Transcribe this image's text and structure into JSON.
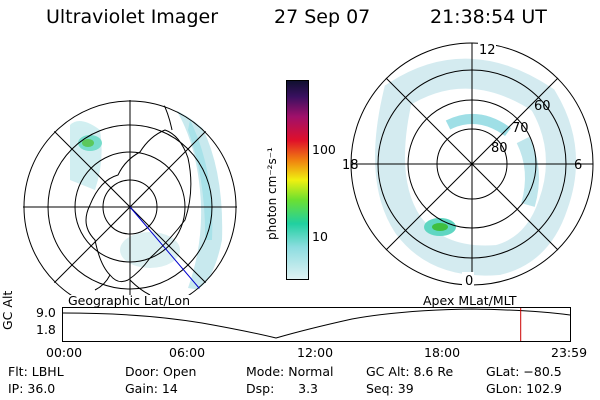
{
  "header": {
    "instrument": "Ultraviolet Imager",
    "date": "27 Sep 07",
    "time": "21:38:54 UT"
  },
  "colorbar": {
    "unit_label": "photon cm⁻²s⁻¹",
    "ticks": [
      "100",
      "10"
    ]
  },
  "left_map": {
    "caption": "Geographic Lat/Lon"
  },
  "right_map": {
    "caption": "Apex MLat/MLT",
    "mlt_labels": {
      "top": "12",
      "bottom": "0",
      "left": "18",
      "right": "6"
    },
    "lat_labels": [
      "60",
      "70",
      "80"
    ]
  },
  "timeline": {
    "ylabel": "GC Alt",
    "yticks": [
      "9.0",
      "1.8"
    ],
    "xticks": [
      "00:00",
      "06:00",
      "12:00",
      "18:00",
      "23:59"
    ],
    "current_marker_hour": 21.65
  },
  "info": {
    "filter": "Flt: LBHL",
    "ip": "IP: 36.0",
    "door": "Door: Open",
    "gain": "Gain: 14",
    "mode": "Mode: Normal",
    "dsp": "Dsp:      3.3",
    "gc_alt": "GC Alt: 8.6 Re",
    "seq": "Seq: 39",
    "glat": "GLat: −80.5",
    "glon": "GLon: 102.9"
  },
  "colors": {
    "marker": "#cc0000",
    "meridian_blue": "#0000cc"
  }
}
